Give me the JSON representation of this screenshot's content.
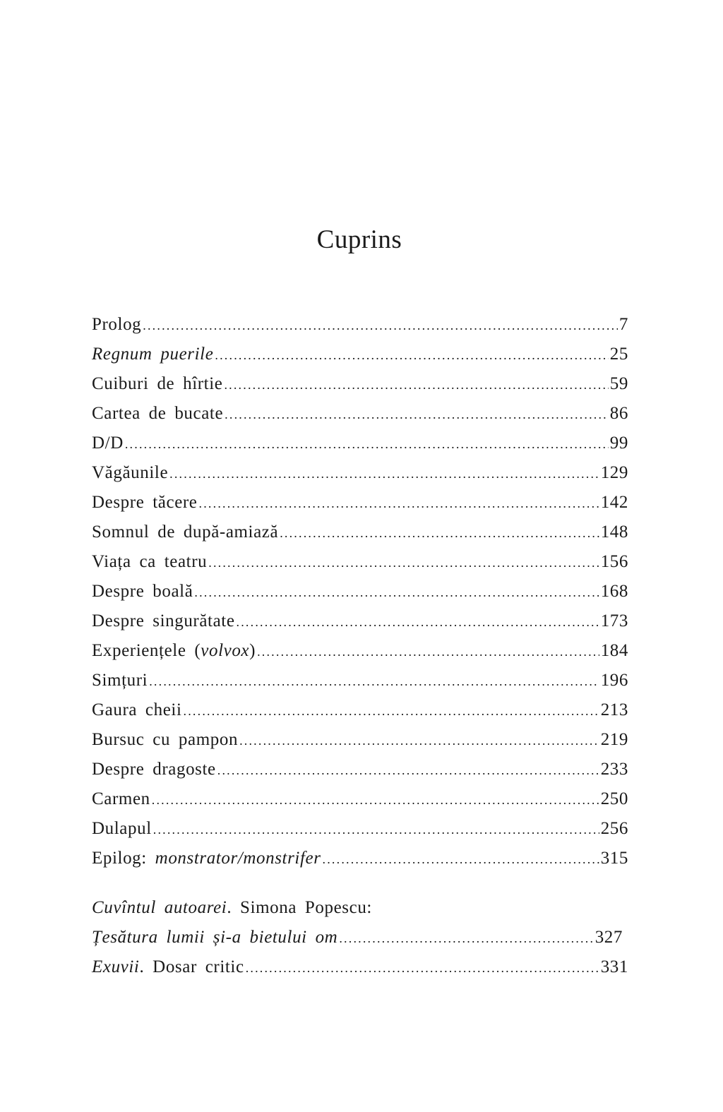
{
  "title": "Cuprins",
  "entries": [
    {
      "parts": [
        {
          "text": "Prolog",
          "italic": false
        }
      ],
      "page": "7"
    },
    {
      "parts": [
        {
          "text": "Regnum puerile",
          "italic": true
        }
      ],
      "page": "25"
    },
    {
      "parts": [
        {
          "text": "Cuiburi de hîrtie",
          "italic": false
        }
      ],
      "page": "59"
    },
    {
      "parts": [
        {
          "text": "Cartea de bucate",
          "italic": false
        }
      ],
      "page": "86"
    },
    {
      "parts": [
        {
          "text": "D/D",
          "italic": false
        }
      ],
      "page": "99"
    },
    {
      "parts": [
        {
          "text": "Văgăunile",
          "italic": false
        }
      ],
      "page": "129"
    },
    {
      "parts": [
        {
          "text": "Despre tăcere",
          "italic": false
        }
      ],
      "page": "142"
    },
    {
      "parts": [
        {
          "text": "Somnul de după-amiază",
          "italic": false
        }
      ],
      "page": "148"
    },
    {
      "parts": [
        {
          "text": "Viața ca teatru",
          "italic": false
        }
      ],
      "page": "156"
    },
    {
      "parts": [
        {
          "text": "Despre boală",
          "italic": false
        }
      ],
      "page": "168"
    },
    {
      "parts": [
        {
          "text": "Despre singurătate",
          "italic": false
        }
      ],
      "page": "173"
    },
    {
      "parts": [
        {
          "text": "Experiențele (",
          "italic": false
        },
        {
          "text": "volvox",
          "italic": true
        },
        {
          "text": ")",
          "italic": false
        }
      ],
      "page": "184"
    },
    {
      "parts": [
        {
          "text": "Simțuri",
          "italic": false
        }
      ],
      "page": "196"
    },
    {
      "parts": [
        {
          "text": "Gaura cheii",
          "italic": false
        }
      ],
      "page": "213"
    },
    {
      "parts": [
        {
          "text": "Bursuc cu pampon",
          "italic": false
        }
      ],
      "page": "219"
    },
    {
      "parts": [
        {
          "text": "Despre dragoste",
          "italic": false
        }
      ],
      "page": "233"
    },
    {
      "parts": [
        {
          "text": "Carmen",
          "italic": false
        }
      ],
      "page": "250"
    },
    {
      "parts": [
        {
          "text": "Dulapul",
          "italic": false
        }
      ],
      "page": "256"
    },
    {
      "parts": [
        {
          "text": "Epilog: ",
          "italic": false
        },
        {
          "text": "monstrator/monstrifer",
          "italic": true
        }
      ],
      "page": "315"
    }
  ],
  "appendix": {
    "heading_parts": [
      {
        "text": "Cuvîntul autoarei",
        "italic": true
      },
      {
        "text": ". Simona Popescu:",
        "italic": false
      }
    ],
    "entries": [
      {
        "parts": [
          {
            "text": "Țesătura lumii și-a bietului om",
            "italic": true
          }
        ],
        "page": "327"
      },
      {
        "parts": [
          {
            "text": "Exuvii",
            "italic": true
          },
          {
            "text": ". Dosar critic",
            "italic": false
          }
        ],
        "page": "331"
      }
    ]
  }
}
